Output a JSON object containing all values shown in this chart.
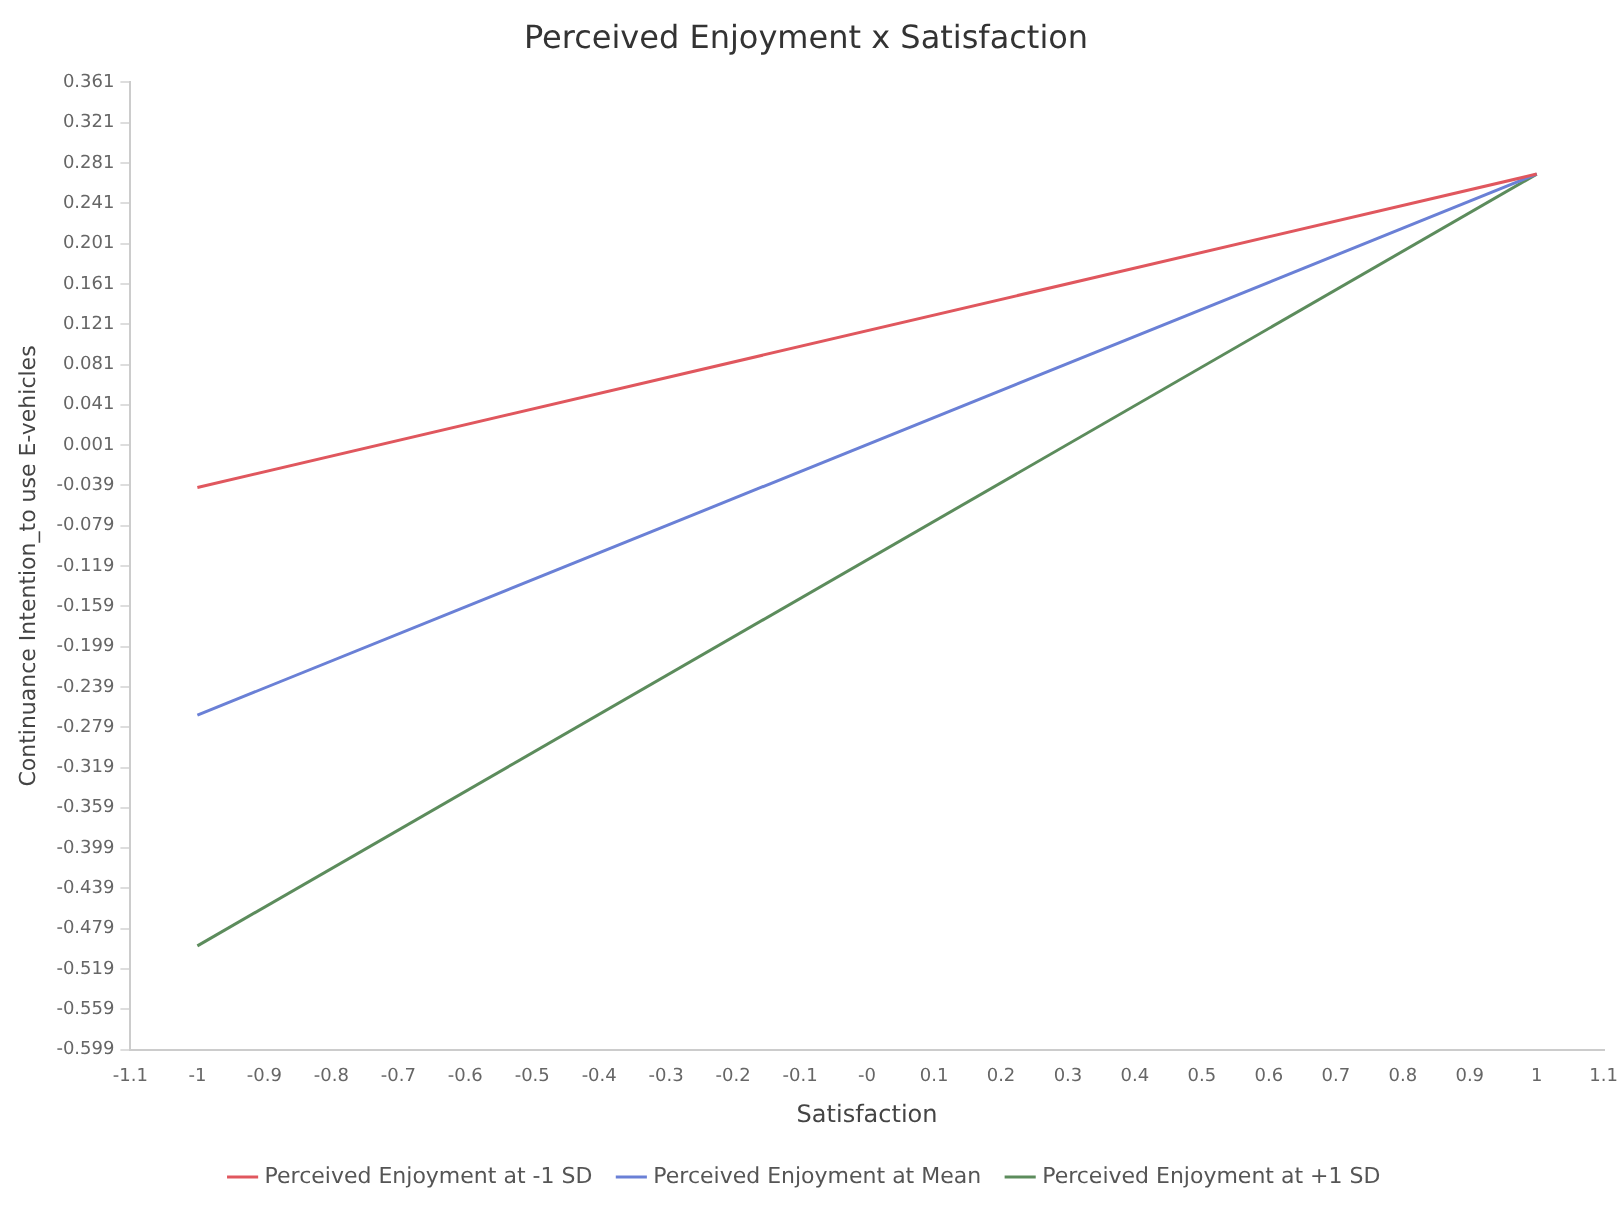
{
  "chart_data": {
    "type": "line",
    "title": "Perceived Enjoyment x Satisfaction",
    "xlabel": "Satisfaction",
    "ylabel": "Continuance Intention_to use E-vehicles",
    "x": [
      -1,
      1
    ],
    "series": [
      {
        "name": "Perceived Enjoyment at -1 SD",
        "color": "#e0575e",
        "values": [
          -0.041,
          0.27
        ]
      },
      {
        "name": "Perceived Enjoyment at Mean",
        "color": "#6a80d6",
        "values": [
          -0.267,
          0.27
        ]
      },
      {
        "name": "Perceived Enjoyment at +1 SD",
        "color": "#5c8c5c",
        "values": [
          -0.496,
          0.27
        ]
      }
    ],
    "xlim": [
      -1.1,
      1.1
    ],
    "xticks": [
      -1.1,
      -1,
      -0.9,
      -0.8,
      -0.7,
      -0.6,
      -0.5,
      -0.4,
      -0.3,
      -0.2,
      -0.1,
      {
        "value": 0,
        "label": "-0"
      },
      0.1,
      0.2,
      0.3,
      0.4,
      0.5,
      0.6,
      0.7,
      0.8,
      0.9,
      1,
      1.1
    ],
    "ylim": [
      -0.599,
      0.361
    ],
    "yticks": [
      0.361,
      0.321,
      0.281,
      0.241,
      0.201,
      0.161,
      0.121,
      0.081,
      0.041,
      0.001,
      -0.039,
      -0.079,
      -0.119,
      -0.159,
      -0.199,
      -0.239,
      -0.279,
      -0.319,
      -0.359,
      -0.399,
      -0.439,
      -0.479,
      -0.519,
      -0.559,
      -0.599
    ],
    "grid": false,
    "legend": "bottom",
    "marker": "none",
    "line_style": "solid"
  }
}
